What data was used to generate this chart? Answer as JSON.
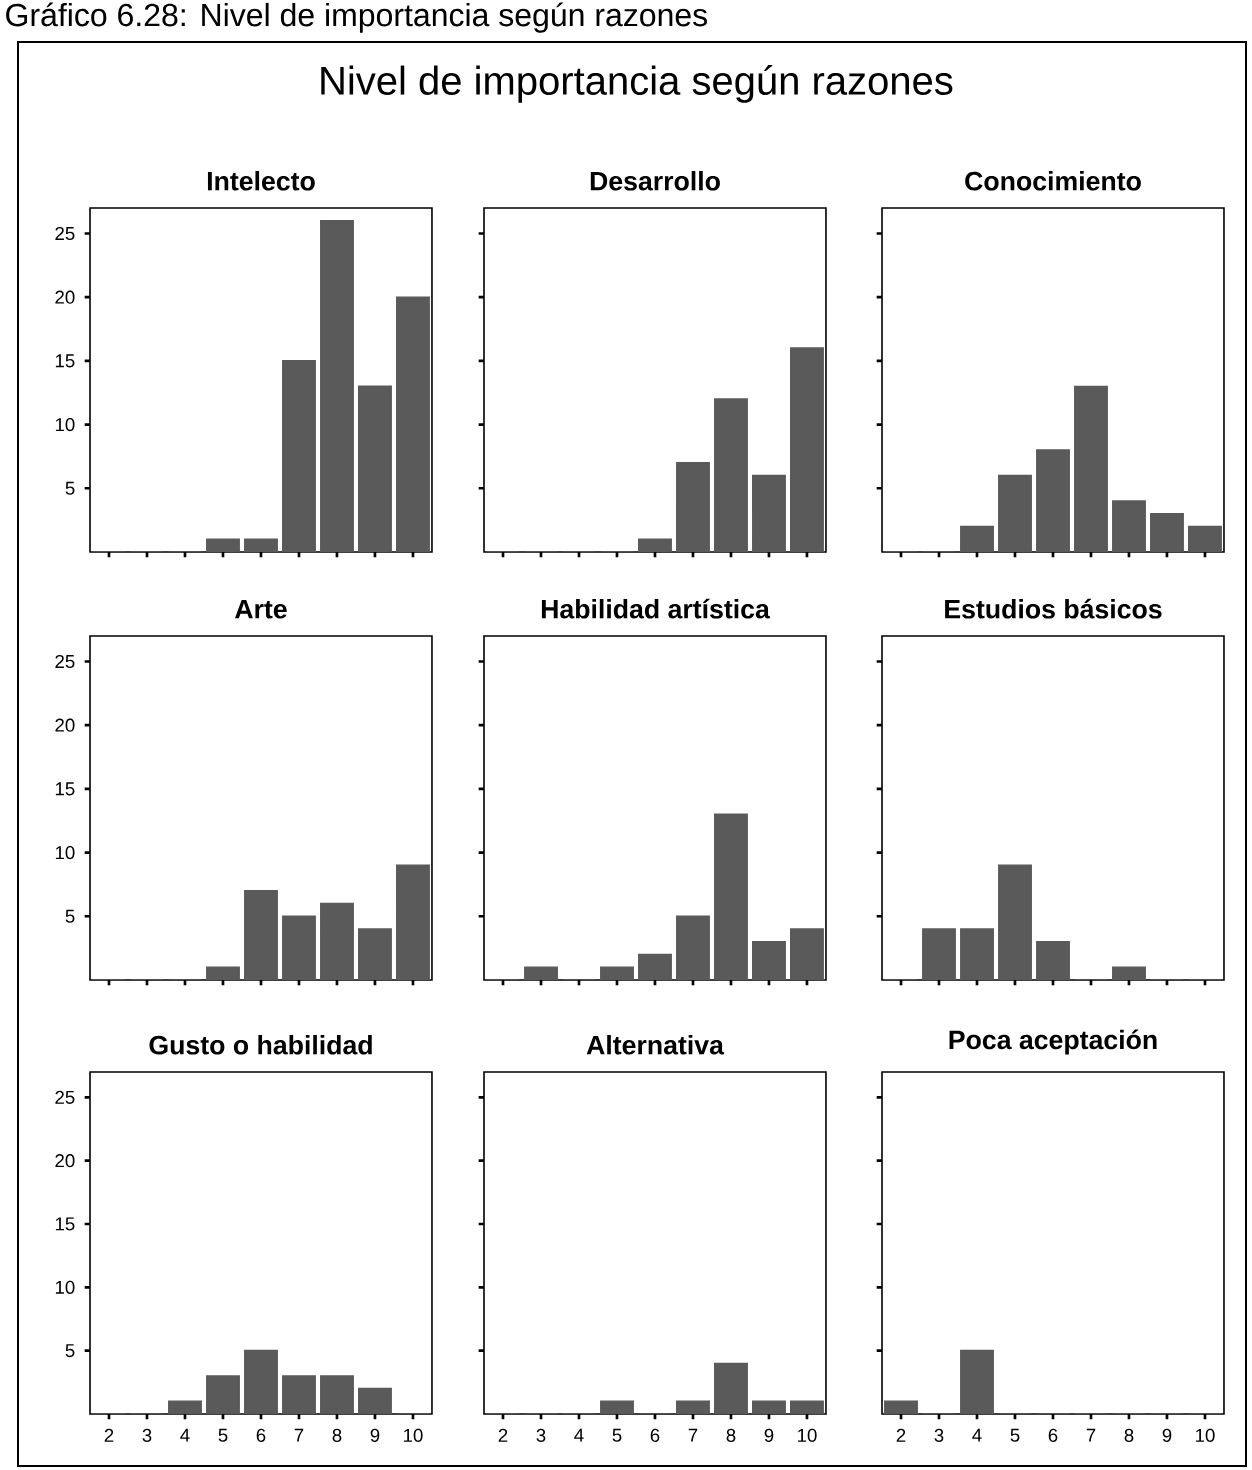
{
  "chart_data": [
    {
      "type": "bar",
      "title": "Intelecto",
      "annotations": [
        "Gráfico 6.28: Nivel de importancia según razones",
        "Nivel de importancia según razones"
      ],
      "categories": [
        "2",
        "3",
        "4",
        "5",
        "6",
        "7",
        "8",
        "9",
        "10"
      ],
      "values": [
        0,
        0,
        0,
        1,
        1,
        15,
        26,
        13,
        20
      ],
      "color": "#5a5a5a",
      "ylim": [
        0,
        27
      ],
      "yticks": [
        5,
        10,
        15,
        20,
        25
      ],
      "tick_labels": "y"
    },
    {
      "type": "bar",
      "title": "Desarrollo",
      "categories": [
        "2",
        "3",
        "4",
        "5",
        "6",
        "7",
        "8",
        "9",
        "10"
      ],
      "values": [
        0,
        0,
        0,
        0,
        1,
        7,
        12,
        6,
        16
      ],
      "color": "#5a5a5a",
      "ylim": [
        0,
        27
      ],
      "yticks": [
        5,
        10,
        15,
        20,
        25
      ],
      "tick_labels": false
    },
    {
      "type": "bar",
      "title": "Conocimiento",
      "categories": [
        "2",
        "3",
        "4",
        "5",
        "6",
        "7",
        "8",
        "9",
        "10"
      ],
      "values": [
        0,
        0,
        2,
        6,
        8,
        13,
        4,
        3,
        2
      ],
      "color": "#5a5a5a",
      "ylim": [
        0,
        27
      ],
      "yticks": [
        5,
        10,
        15,
        20,
        25
      ],
      "tick_labels": false
    },
    {
      "type": "bar",
      "title": "Arte",
      "categories": [
        "2",
        "3",
        "4",
        "5",
        "6",
        "7",
        "8",
        "9",
        "10"
      ],
      "values": [
        0,
        0,
        0,
        1,
        7,
        5,
        6,
        4,
        9
      ],
      "color": "#5a5a5a",
      "ylim": [
        0,
        27
      ],
      "yticks": [
        5,
        10,
        15,
        20,
        25
      ],
      "tick_labels": "y"
    },
    {
      "type": "bar",
      "title": "Habilidad artística",
      "categories": [
        "2",
        "3",
        "4",
        "5",
        "6",
        "7",
        "8",
        "9",
        "10"
      ],
      "values": [
        0,
        1,
        0,
        1,
        2,
        5,
        13,
        3,
        4
      ],
      "color": "#5a5a5a",
      "ylim": [
        0,
        27
      ],
      "yticks": [
        5,
        10,
        15,
        20,
        25
      ],
      "tick_labels": false
    },
    {
      "type": "bar",
      "title": "Estudios básicos",
      "categories": [
        "2",
        "3",
        "4",
        "5",
        "6",
        "7",
        "8",
        "9",
        "10"
      ],
      "values": [
        0,
        4,
        4,
        9,
        3,
        0,
        1,
        0,
        0
      ],
      "color": "#5a5a5a",
      "ylim": [
        0,
        27
      ],
      "yticks": [
        5,
        10,
        15,
        20,
        25
      ],
      "tick_labels": false
    },
    {
      "type": "bar",
      "title": "Gusto o habilidad",
      "categories": [
        "2",
        "3",
        "4",
        "5",
        "6",
        "7",
        "8",
        "9",
        "10"
      ],
      "values": [
        0,
        0,
        1,
        3,
        5,
        3,
        3,
        2,
        0
      ],
      "color": "#5a5a5a",
      "ylim": [
        0,
        27
      ],
      "yticks": [
        5,
        10,
        15,
        20,
        25
      ]
    },
    {
      "type": "bar",
      "title": "Alternativa",
      "categories": [
        "2",
        "3",
        "4",
        "5",
        "6",
        "7",
        "8",
        "9",
        "10"
      ],
      "values": [
        0,
        0,
        0,
        1,
        0,
        1,
        4,
        1,
        1
      ],
      "color": "#5a5a5a",
      "ylim": [
        0,
        27
      ],
      "yticks": [
        5,
        10,
        15,
        20,
        25
      ],
      "tick_labels": "x"
    },
    {
      "type": "bar",
      "title": "Poca aceptación",
      "categories": [
        "2",
        "3",
        "4",
        "5",
        "6",
        "7",
        "8",
        "9",
        "10"
      ],
      "values": [
        1,
        0,
        5,
        0,
        0,
        0,
        0,
        0,
        0
      ],
      "color": "#5a5a5a",
      "ylim": [
        0,
        27
      ],
      "yticks": [
        5,
        10,
        15,
        20,
        25
      ],
      "tick_labels": "x"
    }
  ]
}
